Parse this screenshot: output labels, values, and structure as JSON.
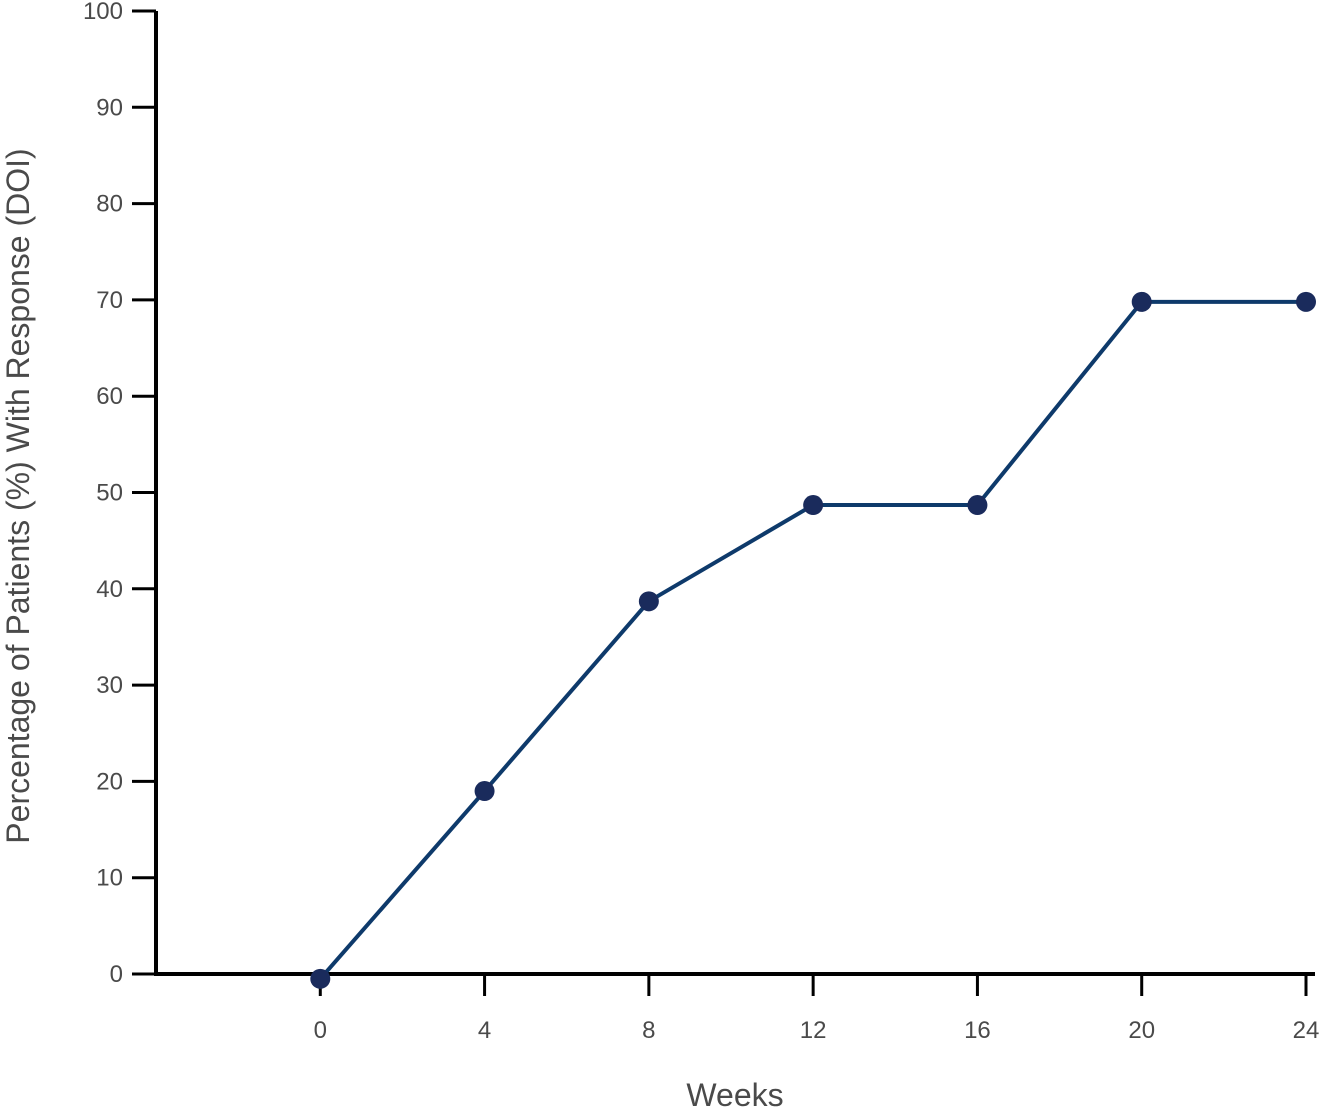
{
  "chart_data": {
    "type": "line",
    "title": "",
    "xlabel": "Weeks",
    "ylabel": "Percentage of Patients (%) With Response (DOI)",
    "x": [
      0,
      4,
      8,
      12,
      16,
      20,
      24
    ],
    "series": [
      {
        "values": [
          -0.5,
          19,
          38.7,
          48.7,
          48.7,
          69.8,
          69.8
        ],
        "color": "#0e3a6b",
        "marker_color": "#1a2b5c"
      }
    ],
    "x_ticks": [
      "0",
      "4",
      "8",
      "12",
      "16",
      "20",
      "24"
    ],
    "y_ticks": [
      "0",
      "10",
      "20",
      "30",
      "40",
      "50",
      "60",
      "70",
      "80",
      "90",
      "100"
    ],
    "xlim": [
      -4,
      24
    ],
    "ylim": [
      0,
      100
    ],
    "grid": false,
    "legend": "none"
  }
}
